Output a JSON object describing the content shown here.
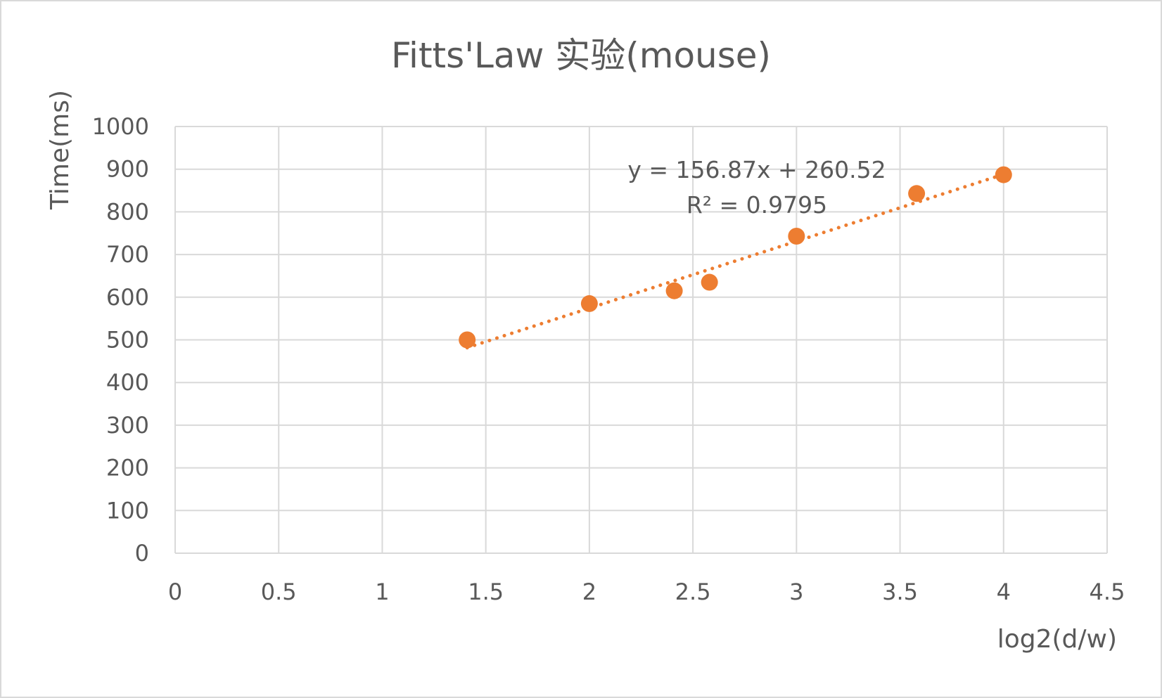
{
  "chart_data": {
    "type": "scatter",
    "title": "Fitts'Law 实验(mouse)",
    "xlabel": "log2(d/w)",
    "ylabel": "Time(ms)",
    "xlim": [
      0,
      4.5
    ],
    "ylim": [
      0,
      1000
    ],
    "xticks": [
      "0",
      "0.5",
      "1",
      "1.5",
      "2",
      "2.5",
      "3",
      "3.5",
      "4",
      "4.5"
    ],
    "yticks": [
      "0",
      "100",
      "200",
      "300",
      "400",
      "500",
      "600",
      "700",
      "800",
      "900",
      "1000"
    ],
    "grid": true,
    "series": [
      {
        "x": [
          1.41,
          2.0,
          2.41,
          2.58,
          3.0,
          3.58,
          4.0
        ],
        "y": [
          500,
          585,
          615,
          635,
          743,
          843,
          887
        ],
        "color": "#ED7D31"
      }
    ],
    "trendline": {
      "kind": "linear",
      "slope": 156.87,
      "intercept": 260.52,
      "equation": "y = 156.87x + 260.52",
      "r2_label": "R² = 0.9795",
      "color": "#ED7D31",
      "style": "dotted"
    }
  }
}
